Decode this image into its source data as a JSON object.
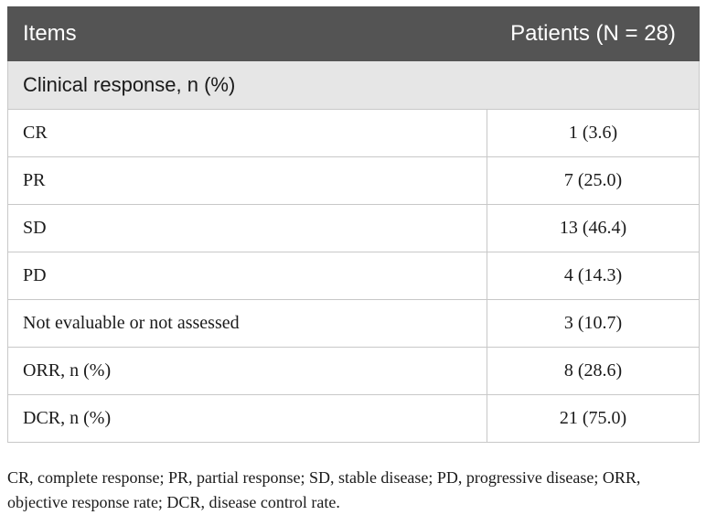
{
  "table": {
    "headers": [
      "Items",
      "Patients (N = 28)"
    ],
    "section_title": "Clinical response, n (%)",
    "rows": [
      {
        "item": "CR",
        "value": "1 (3.6)"
      },
      {
        "item": "PR",
        "value": "7 (25.0)"
      },
      {
        "item": "SD",
        "value": "13 (46.4)"
      },
      {
        "item": "PD",
        "value": "4 (14.3)"
      },
      {
        "item": "Not evaluable or not assessed",
        "value": "3 (10.7)"
      },
      {
        "item": "ORR, n (%)",
        "value": "8 (28.6)"
      },
      {
        "item": "DCR, n (%)",
        "value": "21 (75.0)"
      }
    ]
  },
  "footnote": "CR, complete response; PR, partial response; SD, stable disease; PD, progressive disease; ORR, objective response rate; DCR, disease control rate.",
  "colors": {
    "header_bg": "#545454",
    "section_bg": "#e6e6e6",
    "border": "#c8c8c8"
  }
}
